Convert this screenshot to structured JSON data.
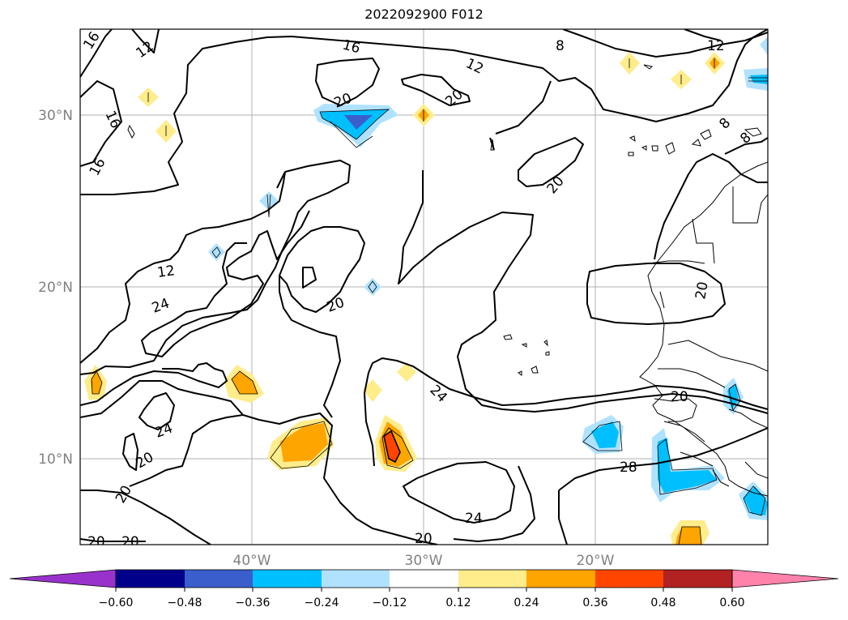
{
  "title": "2022092900 F012",
  "map": {
    "lon_ticks": [
      "40°W",
      "30°W",
      "20°W"
    ],
    "lat_ticks": [
      "30°N",
      "20°N",
      "10°N"
    ],
    "contour_labels": [
      "16",
      "12",
      "8",
      "12",
      "12",
      "16",
      "16",
      "20",
      "20",
      "8",
      "8",
      "20",
      "16",
      "12",
      "24",
      "20",
      "20",
      "24",
      "20",
      "24",
      "20",
      "20",
      "28",
      "24",
      "20",
      "20"
    ]
  },
  "colorbar": {
    "ticks": [
      "−0.60",
      "−0.48",
      "−0.36",
      "−0.24",
      "−0.12",
      "0.12",
      "0.24",
      "0.36",
      "0.48",
      "0.60"
    ],
    "colors": [
      "#9932cc",
      "#00008b",
      "#3a5fcd",
      "#00bfff",
      "#b0e2ff",
      "#ffffff",
      "#ffec8b",
      "#ffa500",
      "#ff4500",
      "#b22222",
      "#ff82ab"
    ]
  }
}
